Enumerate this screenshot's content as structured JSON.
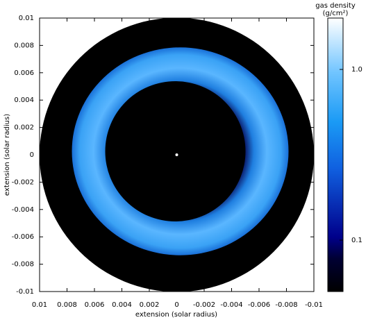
{
  "chart_data": {
    "type": "image",
    "xlabel": "extension (solar radius)",
    "ylabel": "extension (solar radius)",
    "xlim": [
      0.01,
      -0.01
    ],
    "ylim": [
      -0.01,
      0.01
    ],
    "xticks": [
      0.01,
      0.008,
      0.006,
      0.004,
      0.002,
      0,
      -0.002,
      -0.004,
      -0.006,
      -0.008,
      -0.01
    ],
    "yticks": [
      0.01,
      0.008,
      0.006,
      0.004,
      0.002,
      0,
      -0.002,
      -0.004,
      -0.006,
      -0.008,
      -0.01
    ],
    "colorbar_title": "gas density",
    "colorbar_units": "(g/cm²)",
    "colorbar_scale": "log",
    "clim": [
      0.05,
      2
    ],
    "colorbar_ticks": [
      {
        "value": 1,
        "label": "1.0"
      },
      0.1
    ]
  }
}
